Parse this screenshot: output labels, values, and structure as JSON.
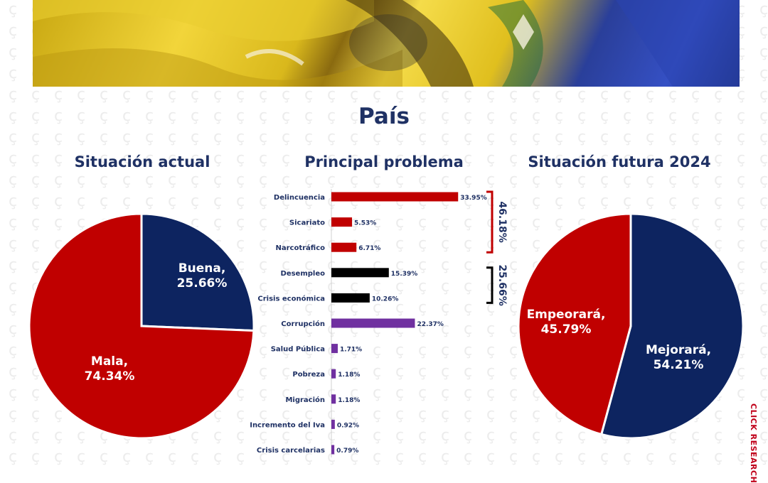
{
  "page": {
    "title": "País",
    "brand": "CLICK RESEARCH"
  },
  "colors": {
    "red": "#c00000",
    "navy": "#0d2460",
    "black": "#000000",
    "purple": "#7030a0",
    "title_text": "#1f3164"
  },
  "chart_data": [
    {
      "type": "pie",
      "title": "Situación actual",
      "slices": [
        {
          "label": "Buena",
          "value": 25.66,
          "color": "#0d2460",
          "display": "25.66%"
        },
        {
          "label": "Mala",
          "value": 74.34,
          "color": "#c00000",
          "display": "74.34%"
        }
      ]
    },
    {
      "type": "bar",
      "orientation": "horizontal",
      "title": "Principal problema",
      "categories": [
        "Delincuencia",
        "Sicariato",
        "Narcotráfico",
        "Desempleo",
        "Crisis económica",
        "Corrupción",
        "Salud Pública",
        "Pobreza",
        "Migración",
        "Incremento del Iva",
        "Crisis carcelarias"
      ],
      "values": [
        33.95,
        5.53,
        6.71,
        15.39,
        10.26,
        22.37,
        1.71,
        1.18,
        1.18,
        0.92,
        0.79
      ],
      "value_labels": [
        "33.95%",
        "5.53%",
        "6.71%",
        "15.39%",
        "10.26%",
        "22.37%",
        "1.71%",
        "1.18%",
        "1.18%",
        "0.92%",
        "0.79%"
      ],
      "bar_colors": [
        "#c00000",
        "#c00000",
        "#c00000",
        "#000000",
        "#000000",
        "#7030a0",
        "#7030a0",
        "#7030a0",
        "#7030a0",
        "#7030a0",
        "#7030a0"
      ],
      "groups": [
        {
          "label": "46.18%",
          "from": 0,
          "to": 2,
          "color": "#c00000"
        },
        {
          "label": "25.66%",
          "from": 3,
          "to": 4,
          "color": "#000000"
        }
      ]
    },
    {
      "type": "pie",
      "title": "Situación futura 2024",
      "slices": [
        {
          "label": "Mejorará",
          "value": 54.21,
          "color": "#0d2460",
          "display": "54.21%"
        },
        {
          "label": "Empeorará",
          "value": 45.79,
          "color": "#c00000",
          "display": "45.79%"
        }
      ]
    }
  ]
}
